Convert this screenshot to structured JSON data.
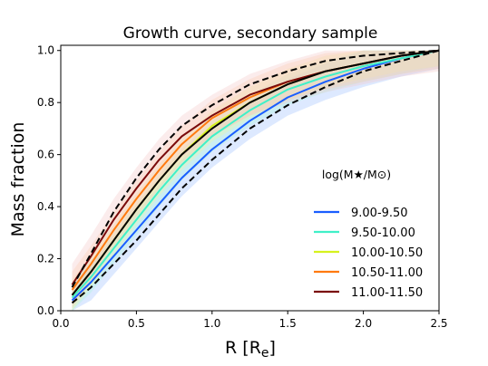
{
  "chart_data": {
    "type": "line",
    "title": "Growth curve, secondary sample",
    "xlabel": "R [R",
    "xlabel_sub": "e",
    "xlabel_close": "]",
    "ylabel": "Mass fraction",
    "xlim": [
      0.0,
      2.5
    ],
    "ylim": [
      0.0,
      1.02
    ],
    "xticks": [
      0.0,
      0.5,
      1.0,
      1.5,
      2.0,
      2.5
    ],
    "yticks": [
      0.0,
      0.2,
      0.4,
      0.6,
      0.8,
      1.0
    ],
    "xtick_labels": [
      "0.0",
      "0.5",
      "1.0",
      "1.5",
      "2.0",
      "2.5"
    ],
    "ytick_labels": [
      "0.0",
      "0.2",
      "0.4",
      "0.6",
      "0.8",
      "1.0"
    ],
    "grid": false,
    "legend_placement": "lower-right",
    "legend_title": "log(M★/M⊙)",
    "x": [
      0.075,
      0.2,
      0.35,
      0.5,
      0.65,
      0.8,
      1.0,
      1.25,
      1.5,
      1.75,
      2.0,
      2.25,
      2.5
    ],
    "series": [
      {
        "name": "9.00-9.50",
        "color": "#1a5eff",
        "values": [
          0.04,
          0.11,
          0.21,
          0.31,
          0.41,
          0.51,
          0.62,
          0.73,
          0.82,
          0.88,
          0.93,
          0.97,
          1.0
        ],
        "band": 0.07,
        "band_color": "#9fc0ff"
      },
      {
        "name": "9.50-10.00",
        "color": "#40f0c8",
        "values": [
          0.05,
          0.13,
          0.24,
          0.35,
          0.46,
          0.56,
          0.67,
          0.77,
          0.85,
          0.9,
          0.94,
          0.97,
          1.0
        ],
        "band": 0.06,
        "band_color": "#a8f5dd"
      },
      {
        "name": "10.00-10.50",
        "color": "#d6f21e",
        "values": [
          0.06,
          0.15,
          0.27,
          0.39,
          0.5,
          0.6,
          0.71,
          0.8,
          0.87,
          0.92,
          0.95,
          0.98,
          1.0
        ],
        "band": 0.06,
        "band_color": "#eef8a0"
      },
      {
        "name": "10.50-11.00",
        "color": "#ff7a10",
        "values": [
          0.08,
          0.18,
          0.31,
          0.43,
          0.54,
          0.64,
          0.74,
          0.82,
          0.88,
          0.92,
          0.95,
          0.98,
          1.0
        ],
        "band": 0.07,
        "band_color": "#ffcfa6"
      },
      {
        "name": "11.00-11.50",
        "color": "#7a0a0a",
        "values": [
          0.1,
          0.21,
          0.35,
          0.47,
          0.58,
          0.67,
          0.75,
          0.83,
          0.88,
          0.92,
          0.95,
          0.98,
          1.0
        ],
        "band": 0.08,
        "band_color": "#f3c9c9"
      }
    ],
    "reference_lines": [
      {
        "style": "solid",
        "color": "#000000",
        "values": [
          0.06,
          0.15,
          0.27,
          0.39,
          0.5,
          0.6,
          0.7,
          0.8,
          0.87,
          0.92,
          0.95,
          0.98,
          1.0
        ]
      },
      {
        "style": "dashed",
        "color": "#000000",
        "values": [
          0.03,
          0.09,
          0.18,
          0.27,
          0.37,
          0.47,
          0.58,
          0.7,
          0.79,
          0.86,
          0.92,
          0.96,
          1.0
        ]
      },
      {
        "style": "dashed",
        "color": "#000000",
        "values": [
          0.09,
          0.22,
          0.38,
          0.51,
          0.62,
          0.71,
          0.79,
          0.87,
          0.92,
          0.96,
          0.98,
          0.99,
          1.0
        ]
      }
    ]
  }
}
